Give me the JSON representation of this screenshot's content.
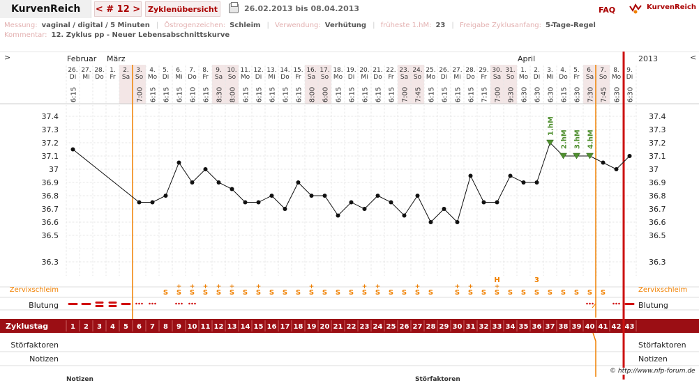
{
  "header": {
    "app_name": "KurvenReich",
    "cycle_label": "< # 12 >",
    "overview_tab": "Zyklenübersicht",
    "date_range": "26.02.2013 bis 08.04.2013",
    "faq": "FAQ",
    "logo_text": "KurvenReich"
  },
  "info": {
    "row1": [
      {
        "label": "Messung:",
        "value": "vaginal / digital / 5 Minuten"
      },
      {
        "label": "Östrogenzeichen:",
        "value": "Schleim"
      },
      {
        "label": "Verwendung:",
        "value": "Verhütung"
      },
      {
        "label": "früheste 1.hM:",
        "value": "23"
      },
      {
        "label": "Freigabe Zyklusanfang:",
        "value": "5-Tage-Regel"
      }
    ],
    "comment_label": "Kommentar:",
    "comment": "12. Zyklus pp - Neuer Lebensabschnittskurve"
  },
  "chart": {
    "left_arrow": ">",
    "right_arrow": "<",
    "year": "2013",
    "months": [
      {
        "name": "Februar",
        "day_index": 0
      },
      {
        "name": "März",
        "day_index": 3
      },
      {
        "name": "April",
        "day_index": 34
      }
    ],
    "days": [
      {
        "d": "26.",
        "w": "Di",
        "t": "6:15",
        "temp": 37.15,
        "cm": "",
        "bl": "dash",
        "z": "1"
      },
      {
        "d": "27.",
        "w": "Mi",
        "t": "",
        "temp": null,
        "cm": "",
        "bl": "dash",
        "z": "2"
      },
      {
        "d": "28.",
        "w": "Do",
        "t": "",
        "temp": null,
        "cm": "",
        "bl": "pill",
        "z": "3"
      },
      {
        "d": "1.",
        "w": "Fr",
        "t": "",
        "temp": null,
        "cm": "",
        "bl": "pill",
        "z": "4"
      },
      {
        "d": "2.",
        "w": "Sa",
        "t": "",
        "temp": null,
        "cm": "",
        "bl": "dash",
        "z": "5"
      },
      {
        "d": "3.",
        "w": "So",
        "t": "7:00",
        "temp": 36.75,
        "cm": "",
        "bl": "dots",
        "z": "6"
      },
      {
        "d": "4.",
        "w": "Mo",
        "t": "6:15",
        "temp": 36.75,
        "cm": "",
        "bl": "dots",
        "z": "7"
      },
      {
        "d": "5.",
        "w": "Di",
        "t": "6:15",
        "temp": 36.8,
        "cm": "S",
        "bl": "",
        "z": "8"
      },
      {
        "d": "6.",
        "w": "Mi",
        "t": "6:15",
        "temp": 37.05,
        "cm": "S+",
        "bl": "dots",
        "z": "9"
      },
      {
        "d": "7.",
        "w": "Do",
        "t": "6:10",
        "temp": 36.9,
        "cm": "S+",
        "bl": "dots",
        "z": "10"
      },
      {
        "d": "8.",
        "w": "Fr",
        "t": "6:15",
        "temp": 37.0,
        "cm": "S+",
        "bl": "",
        "z": "11"
      },
      {
        "d": "9.",
        "w": "Sa",
        "t": "8:30",
        "temp": 36.9,
        "cm": "S+",
        "bl": "",
        "z": "12"
      },
      {
        "d": "10.",
        "w": "So",
        "t": "8:00",
        "temp": 36.85,
        "cm": "S+",
        "bl": "",
        "z": "13"
      },
      {
        "d": "11.",
        "w": "Mo",
        "t": "6:15",
        "temp": 36.75,
        "cm": "S",
        "bl": "",
        "z": "14"
      },
      {
        "d": "12.",
        "w": "Di",
        "t": "6:15",
        "temp": 36.75,
        "cm": "S+",
        "bl": "",
        "z": "15"
      },
      {
        "d": "13.",
        "w": "Mi",
        "t": "6:15",
        "temp": 36.8,
        "cm": "S",
        "bl": "",
        "z": "16"
      },
      {
        "d": "14.",
        "w": "Do",
        "t": "6:15",
        "temp": 36.7,
        "cm": "S",
        "bl": "",
        "z": "17"
      },
      {
        "d": "15.",
        "w": "Fr",
        "t": "6:15",
        "temp": 36.9,
        "cm": "S",
        "bl": "",
        "z": "18"
      },
      {
        "d": "16.",
        "w": "Sa",
        "t": "8:00",
        "temp": 36.8,
        "cm": "S+",
        "bl": "",
        "z": "19"
      },
      {
        "d": "17.",
        "w": "So",
        "t": "6:00",
        "temp": 36.8,
        "cm": "S",
        "bl": "",
        "z": "20"
      },
      {
        "d": "18.",
        "w": "Mo",
        "t": "6:15",
        "temp": 36.65,
        "cm": "S",
        "bl": "",
        "z": "21"
      },
      {
        "d": "19.",
        "w": "Di",
        "t": "6:15",
        "temp": 36.75,
        "cm": "S",
        "bl": "",
        "z": "22"
      },
      {
        "d": "20.",
        "w": "Mi",
        "t": "6:15",
        "temp": 36.7,
        "cm": "S+",
        "bl": "",
        "z": "23"
      },
      {
        "d": "21.",
        "w": "Do",
        "t": "6:15",
        "temp": 36.8,
        "cm": "S+",
        "bl": "",
        "z": "24"
      },
      {
        "d": "22.",
        "w": "Fr",
        "t": "6:15",
        "temp": 36.75,
        "cm": "S",
        "bl": "",
        "z": "25"
      },
      {
        "d": "23.",
        "w": "Sa",
        "t": "7:00",
        "temp": 36.65,
        "cm": "S",
        "bl": "",
        "z": "26"
      },
      {
        "d": "24.",
        "w": "So",
        "t": "7:45",
        "temp": 36.8,
        "cm": "S+",
        "bl": "",
        "z": "27"
      },
      {
        "d": "25.",
        "w": "Mo",
        "t": "6:15",
        "temp": 36.6,
        "cm": "S",
        "bl": "",
        "z": "28"
      },
      {
        "d": "26.",
        "w": "Di",
        "t": "6:15",
        "temp": 36.7,
        "cm": "",
        "bl": "",
        "z": "29"
      },
      {
        "d": "27.",
        "w": "Mi",
        "t": "6:15",
        "temp": 36.6,
        "cm": "S+",
        "bl": "",
        "z": "30"
      },
      {
        "d": "28.",
        "w": "Do",
        "t": "6:15",
        "temp": 36.95,
        "cm": "S+",
        "bl": "",
        "z": "31"
      },
      {
        "d": "29.",
        "w": "Fr",
        "t": "7:15",
        "temp": 36.75,
        "cm": "S",
        "bl": "",
        "z": "32"
      },
      {
        "d": "30.",
        "w": "Sa",
        "t": "7:00",
        "temp": 36.75,
        "cm": "S+",
        "bl": "",
        "z": "33",
        "mark": "H"
      },
      {
        "d": "31.",
        "w": "So",
        "t": "9:30",
        "temp": 36.95,
        "cm": "S",
        "bl": "",
        "z": "34"
      },
      {
        "d": "1.",
        "w": "Mo",
        "t": "6:30",
        "temp": 36.9,
        "cm": "S",
        "bl": "",
        "z": "35"
      },
      {
        "d": "2.",
        "w": "Di",
        "t": "6:30",
        "temp": 36.9,
        "cm": "S",
        "bl": "",
        "z": "36",
        "mark": "3"
      },
      {
        "d": "3.",
        "w": "Mi",
        "t": "6:30",
        "temp": 37.2,
        "cm": "S",
        "bl": "",
        "z": "37",
        "hm": "1.hM"
      },
      {
        "d": "4.",
        "w": "Do",
        "t": "6:15",
        "temp": 37.1,
        "cm": "S",
        "bl": "",
        "z": "38",
        "hm": "2.hM"
      },
      {
        "d": "5.",
        "w": "Fr",
        "t": "6:30",
        "temp": 37.1,
        "cm": "S",
        "bl": "",
        "z": "39",
        "hm": "3.hM"
      },
      {
        "d": "6.",
        "w": "Sa",
        "t": "7:30",
        "temp": 37.1,
        "cm": "S",
        "bl": "dots",
        "z": "40",
        "hm": "4.hM"
      },
      {
        "d": "7.",
        "w": "So",
        "t": "7:45",
        "temp": 37.05,
        "cm": "S",
        "bl": "",
        "z": "41"
      },
      {
        "d": "8.",
        "w": "Mo",
        "t": "6:30",
        "temp": 37.0,
        "cm": "",
        "bl": "dots",
        "z": "42"
      },
      {
        "d": "9.",
        "w": "Di",
        "t": "6:30",
        "temp": 37.1,
        "cm": "",
        "bl": "dash",
        "z": "43"
      }
    ],
    "y_ticks": [
      "37.4",
      "37.3",
      "37.2",
      "37.1",
      "37",
      "36.9",
      "36.8",
      "36.7",
      "36.6",
      "36.5",
      "36.3"
    ],
    "row_labels": {
      "cervix": "Zervixschleim",
      "bleeding": "Blutung",
      "cycle_day": "Zyklustag",
      "disturbance": "Störfaktoren",
      "notes": "Notizen"
    },
    "colors": {
      "accent_red": "#a00000",
      "cycle_bar": "#9b0e14",
      "orange": "#f08000",
      "green": "#4f8f2f",
      "shade": "#f3e6e6"
    }
  },
  "footer": {
    "copyright": "© http://www.nfp-forum.de",
    "notes_title": "Notizen",
    "disturbance_title": "Störfaktoren"
  }
}
